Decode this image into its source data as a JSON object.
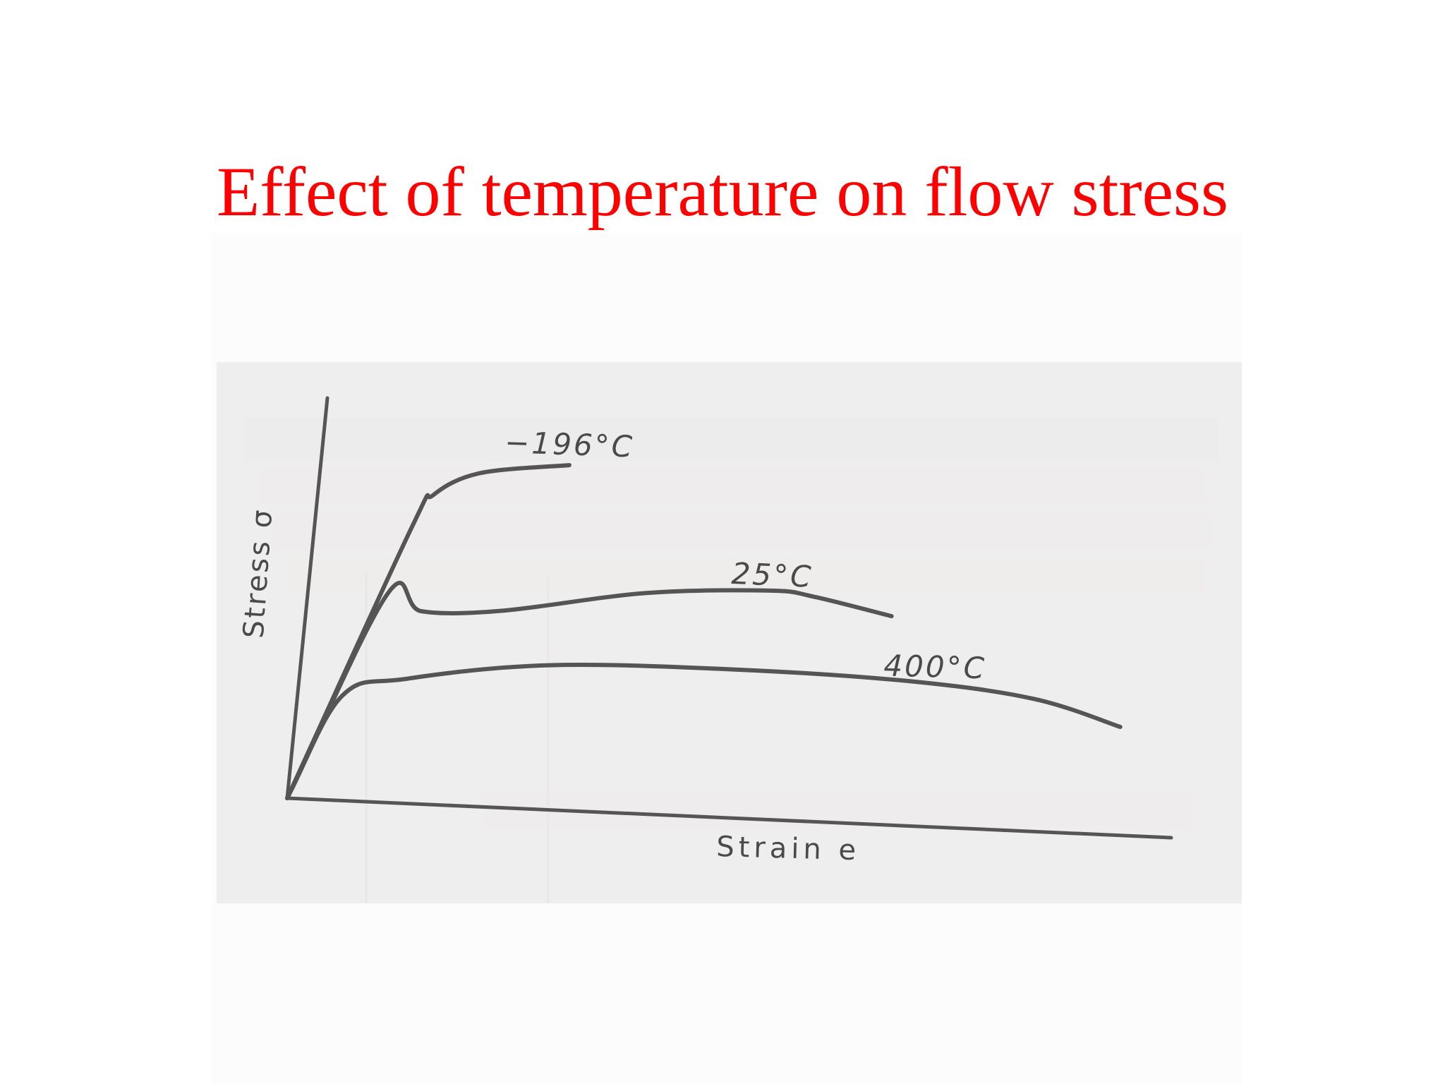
{
  "slide": {
    "title": "Effect of temperature on flow stress"
  },
  "chart_data": {
    "type": "line",
    "title": "",
    "xlabel": "Strain e",
    "ylabel": "Stress σ",
    "xlim": [
      0,
      1
    ],
    "ylim": [
      0,
      1
    ],
    "grid": false,
    "legend": "none",
    "series": [
      {
        "name": "−196°C",
        "label_position": "above-end",
        "points": [
          [
            0.0,
            0.0
          ],
          [
            0.11,
            0.69
          ],
          [
            0.13,
            0.77
          ],
          [
            0.18,
            0.83
          ],
          [
            0.28,
            0.86
          ]
        ]
      },
      {
        "name": "25°C",
        "label_position": "above-peak",
        "points": [
          [
            0.0,
            0.0
          ],
          [
            0.09,
            0.52
          ],
          [
            0.13,
            0.48
          ],
          [
            0.22,
            0.49
          ],
          [
            0.38,
            0.55
          ],
          [
            0.52,
            0.57
          ],
          [
            0.57,
            0.56
          ],
          [
            0.66,
            0.52
          ]
        ]
      },
      {
        "name": "400°C",
        "label_position": "above-right",
        "points": [
          [
            0.0,
            0.0
          ],
          [
            0.05,
            0.26
          ],
          [
            0.12,
            0.31
          ],
          [
            0.28,
            0.36
          ],
          [
            0.49,
            0.37
          ],
          [
            0.69,
            0.36
          ],
          [
            0.83,
            0.33
          ],
          [
            0.93,
            0.27
          ]
        ]
      }
    ],
    "line_color": "#555555"
  }
}
